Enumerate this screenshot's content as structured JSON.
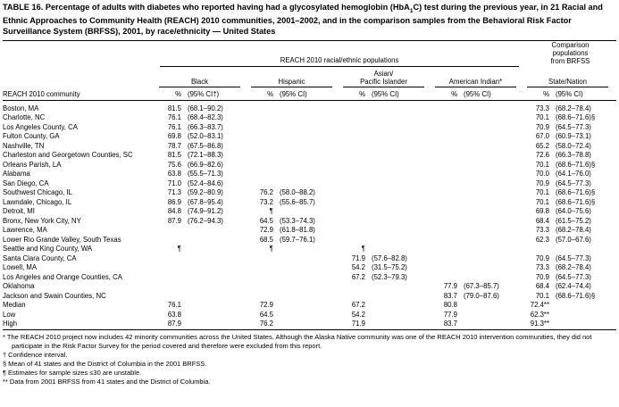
{
  "title": {
    "pre": "TABLE 16. Percentage of adults with diabetes who reported having had a glycosylated hemoglobin (HbA",
    "sub": "1",
    "post": "C) test during the previous year, in 21 Racial and Ethnic Approaches to Community Health (REACH) 2010 communities, 2001–2002, and in the comparison samples from the Behavioral Risk Factor Surveillance System (BRFSS), 2001, by race/ethnicity — United States"
  },
  "header": {
    "community": "REACH 2010 community",
    "reach_spanner": "REACH 2010 racial/ethnic populations",
    "comparison_spanner": "Comparison\npopulations\nfrom BRFSS",
    "groups": [
      "Black",
      "Hispanic",
      "Asian/\nPacific Islander",
      "American Indian*",
      "State/Nation"
    ],
    "subheaders": [
      "%",
      "(95% CI†)",
      "%",
      "(95% CI)",
      "%",
      "(95% CI)",
      "%",
      "(95% CI)",
      "%",
      "(95% CI)"
    ]
  },
  "rows": [
    {
      "community": "Boston, MA",
      "cells": [
        "81.5",
        "(68.1–90.2)",
        "",
        "",
        "",
        "",
        "",
        "",
        "73.3",
        "(68.2–78.4)"
      ]
    },
    {
      "community": "Charlotte, NC",
      "cells": [
        "76.1",
        "(68.4–82.3)",
        "",
        "",
        "",
        "",
        "",
        "",
        "70.1",
        "(68.6–71.6)§"
      ]
    },
    {
      "community": "Los Angeles County, CA",
      "cells": [
        "76.1",
        "(66.3–83.7)",
        "",
        "",
        "",
        "",
        "",
        "",
        "70.9",
        "(64.5–77.3)"
      ]
    },
    {
      "community": "Fulton County, GA",
      "cells": [
        "69.8",
        "(52.0–83.1)",
        "",
        "",
        "",
        "",
        "",
        "",
        "67.0",
        "(60.9–73.1)"
      ]
    },
    {
      "community": "Nashville, TN",
      "cells": [
        "78.7",
        "(67.5–86.8)",
        "",
        "",
        "",
        "",
        "",
        "",
        "65.2",
        "(58.0–72.4)"
      ]
    },
    {
      "community": "Charleston and Georgetown Counties, SC",
      "cells": [
        "81.5",
        "(72.1–88.3)",
        "",
        "",
        "",
        "",
        "",
        "",
        "72.6",
        "(66.3–78.8)"
      ]
    },
    {
      "community": "Orleans Parish, LA",
      "cells": [
        "75.6",
        "(66.9–82.6)",
        "",
        "",
        "",
        "",
        "",
        "",
        "70.1",
        "(68.6–71.6)§"
      ]
    },
    {
      "community": "Alabama",
      "cells": [
        "63.8",
        "(55.5–71.3)",
        "",
        "",
        "",
        "",
        "",
        "",
        "70.0",
        "(64.1–76.0)"
      ]
    },
    {
      "community": "San Diego, CA",
      "cells": [
        "71.0",
        "(52.4–84.6)",
        "",
        "",
        "",
        "",
        "",
        "",
        "70.9",
        "(64.5–77.3)"
      ]
    },
    {
      "community": "Southwest Chicago, IL",
      "cells": [
        "71.3",
        "(59.2–80.9)",
        "76.2",
        "(58.0–88.2)",
        "",
        "",
        "",
        "",
        "70.1",
        "(68.6–71.6)§"
      ]
    },
    {
      "community": "Lawndale, Chicago, IL",
      "cells": [
        "86.9",
        "(67.8–95.4)",
        "73.2",
        "(55.6–85.7)",
        "",
        "",
        "",
        "",
        "70.1",
        "(68.6–71.6)§"
      ]
    },
    {
      "community": "Detroit, MI",
      "cells": [
        "84.8",
        "(74.9–91.2)",
        "¶",
        "",
        "",
        "",
        "",
        "",
        "69.8",
        "(64.0–75.6)"
      ]
    },
    {
      "community": "Bronx, New York City, NY",
      "cells": [
        "87.9",
        "(76.2–94.3)",
        "64.5",
        "(53.3–74.3)",
        "",
        "",
        "",
        "",
        "68.4",
        "(61.5–75.2)"
      ]
    },
    {
      "community": "Lawrence, MA",
      "cells": [
        "",
        "",
        "72.9",
        "(61.8–81.8)",
        "",
        "",
        "",
        "",
        "73.3",
        "(68.2–78.4)"
      ]
    },
    {
      "community": "Lower Rio Grande Valley, South Texas",
      "cells": [
        "",
        "",
        "68.5",
        "(59.7–76.1)",
        "",
        "",
        "",
        "",
        "62.3",
        "(57.0–67.6)"
      ]
    },
    {
      "community": "Seattle and King County, WA",
      "cells": [
        "¶",
        "",
        "¶",
        "",
        "¶",
        "",
        "",
        "",
        "",
        ""
      ]
    },
    {
      "community": "Santa Clara County, CA",
      "cells": [
        "",
        "",
        "",
        "",
        "71.9",
        "(57.6–82.8)",
        "",
        "",
        "70.9",
        "(64.5–77.3)"
      ]
    },
    {
      "community": "Lowell, MA",
      "cells": [
        "",
        "",
        "",
        "",
        "54.2",
        "(31.5–75.2)",
        "",
        "",
        "73.3",
        "(68.2–78.4)"
      ]
    },
    {
      "community": "Los Angeles and Orange Counties, CA",
      "cells": [
        "",
        "",
        "",
        "",
        "67.2",
        "(52.3–79.3)",
        "",
        "",
        "70.9",
        "(64.5–77.3)"
      ]
    },
    {
      "community": "Oklahoma",
      "cells": [
        "",
        "",
        "",
        "",
        "",
        "",
        "77.9",
        "(67.3–85.7)",
        "68.4",
        "(62.4–74.4)"
      ]
    },
    {
      "community": "Jackson and Swain Counties, NC",
      "cells": [
        "",
        "",
        "",
        "",
        "",
        "",
        "83.7",
        "(79.0–87.6)",
        "70.1",
        "(68.6–71.6)§"
      ]
    },
    {
      "community": "Median",
      "cells": [
        "76.1",
        "",
        "72.9",
        "",
        "67.2",
        "",
        "80.8",
        "",
        "72.4**",
        ""
      ]
    },
    {
      "community": "Low",
      "cells": [
        "63.8",
        "",
        "64.5",
        "",
        "54.2",
        "",
        "77.9",
        "",
        "62.3**",
        ""
      ]
    },
    {
      "community": "High",
      "cells": [
        "87.9",
        "",
        "76.2",
        "",
        "71.9",
        "",
        "83.7",
        "",
        "91.3**",
        ""
      ]
    }
  ],
  "footnotes": [
    {
      "symbol": "*",
      "text": "The REACH 2010 project now includes 42 minority communities across the United States. Although the Alaska Native community was one of the REACH 2010 intervention communities, they did not participate in the Risk Factor Survey for the period covered and therefore were excluded from this report."
    },
    {
      "symbol": "†",
      "text": "Confidence interval."
    },
    {
      "symbol": "§",
      "text": "Mean of 41 states and the District of Columbia in the 2001 BRFSS."
    },
    {
      "symbol": "¶",
      "text": "Estimates for sample sizes ≤30 are unstable."
    },
    {
      "symbol": "**",
      "text": "Data from 2001 BRFSS from 41 states and the District of Columbia."
    }
  ]
}
